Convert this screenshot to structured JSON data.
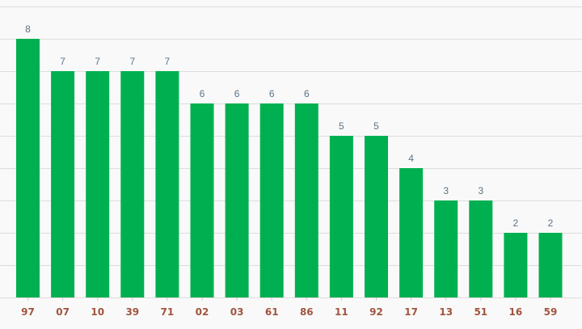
{
  "chart_data": {
    "type": "bar",
    "categories": [
      "97",
      "07",
      "10",
      "39",
      "71",
      "02",
      "03",
      "61",
      "86",
      "11",
      "92",
      "17",
      "13",
      "51",
      "16",
      "59"
    ],
    "values": [
      8,
      7,
      7,
      7,
      7,
      6,
      6,
      6,
      6,
      5,
      5,
      4,
      3,
      3,
      2,
      2
    ],
    "title": "",
    "xlabel": "",
    "ylabel": "",
    "ylim": [
      0,
      9
    ],
    "grid": true,
    "data_labels": true,
    "colors": {
      "bar": "#00b050",
      "value_label": "#5b7486",
      "category_label": "#a0553e",
      "grid": "#dddddd",
      "background": "#f9f9f9"
    }
  }
}
